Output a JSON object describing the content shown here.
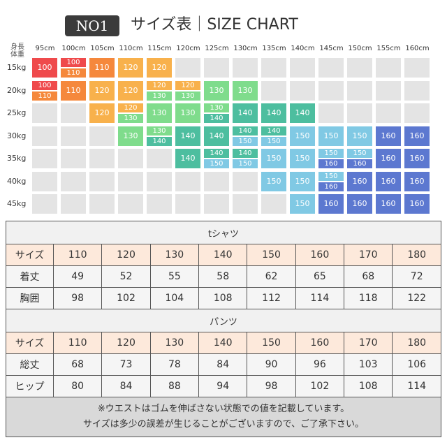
{
  "header": {
    "badge": "NO1",
    "title": "サイズ表｜SIZE CHART"
  },
  "grid": {
    "corner_label": "身長\n体重",
    "heights": [
      "95cm",
      "100cm",
      "105cm",
      "110cm",
      "115cm",
      "120cm",
      "125cm",
      "130cm",
      "135cm",
      "140cm",
      "145cm",
      "150cm",
      "155cm",
      "160cm"
    ],
    "weights": [
      "15kg",
      "20kg",
      "25kg",
      "30kg",
      "35kg",
      "40kg",
      "45kg"
    ],
    "colors": {
      "100": "#ef4a4c",
      "110": "#f5883c",
      "120": "#f8b14c",
      "130": "#7fdc8c",
      "140": "#4dbe9f",
      "150": "#80c9e4",
      "160": "#5c78d0",
      "empty": "#e4e4e4"
    },
    "cells": [
      [
        [
          "100"
        ],
        [
          "100",
          "110"
        ],
        [
          "110"
        ],
        [
          "120"
        ],
        [
          "120"
        ],
        [],
        [],
        [],
        [],
        [],
        [],
        [],
        [],
        []
      ],
      [
        [
          "100",
          "110"
        ],
        [
          "110"
        ],
        [
          "120"
        ],
        [
          "120"
        ],
        [
          "120",
          "130"
        ],
        [
          "120",
          "130"
        ],
        [
          "130"
        ],
        [
          "130"
        ],
        [],
        [],
        [],
        [],
        [],
        []
      ],
      [
        [],
        [],
        [
          "120"
        ],
        [
          "120",
          "130"
        ],
        [
          "130"
        ],
        [
          "130"
        ],
        [
          "130",
          "140"
        ],
        [
          "140"
        ],
        [
          "140"
        ],
        [
          "140"
        ],
        [],
        [],
        [],
        []
      ],
      [
        [],
        [],
        [],
        [
          "130"
        ],
        [
          "130",
          "140"
        ],
        [
          "140"
        ],
        [
          "140"
        ],
        [
          "140",
          "150"
        ],
        [
          "140",
          "150"
        ],
        [
          "150"
        ],
        [
          "150"
        ],
        [
          "150"
        ],
        [
          "160"
        ],
        [
          "160"
        ]
      ],
      [
        [],
        [],
        [],
        [],
        [],
        [
          "140"
        ],
        [
          "140",
          "150"
        ],
        [
          "140",
          "150"
        ],
        [
          "150"
        ],
        [
          "150"
        ],
        [
          "150",
          "160"
        ],
        [
          "150",
          "160"
        ],
        [
          "160"
        ],
        [
          "160"
        ]
      ],
      [
        [],
        [],
        [],
        [],
        [],
        [],
        [],
        [],
        [
          "150"
        ],
        [
          "150"
        ],
        [
          "150",
          "160"
        ],
        [
          "160"
        ],
        [
          "160"
        ],
        [
          "160"
        ]
      ],
      [
        [],
        [],
        [],
        [],
        [],
        [],
        [],
        [],
        [],
        [
          "150"
        ],
        [
          "160"
        ],
        [
          "160"
        ],
        [
          "160"
        ],
        [
          "160"
        ]
      ]
    ]
  },
  "tshirt": {
    "title": "tシャツ",
    "rows": [
      {
        "label": "サイズ",
        "values": [
          "110",
          "120",
          "130",
          "140",
          "150",
          "160",
          "170",
          "180"
        ]
      },
      {
        "label": "着丈",
        "values": [
          "49",
          "52",
          "55",
          "58",
          "62",
          "65",
          "68",
          "72"
        ]
      },
      {
        "label": "胸囲",
        "values": [
          "98",
          "102",
          "104",
          "108",
          "112",
          "114",
          "118",
          "122"
        ]
      }
    ]
  },
  "pants": {
    "title": "パンツ",
    "rows": [
      {
        "label": "サイズ",
        "values": [
          "110",
          "120",
          "130",
          "140",
          "150",
          "160",
          "170",
          "180"
        ]
      },
      {
        "label": "総丈",
        "values": [
          "68",
          "73",
          "78",
          "84",
          "90",
          "96",
          "103",
          "106"
        ]
      },
      {
        "label": "ヒップ",
        "values": [
          "80",
          "84",
          "88",
          "94",
          "98",
          "102",
          "108",
          "114"
        ]
      }
    ]
  },
  "note": {
    "line1": "※ウエストはゴムを伸ばさない状態での値を記載しています。",
    "line2": "サイズは多少の誤差が生じることがございますので、ご了承下さい。"
  }
}
